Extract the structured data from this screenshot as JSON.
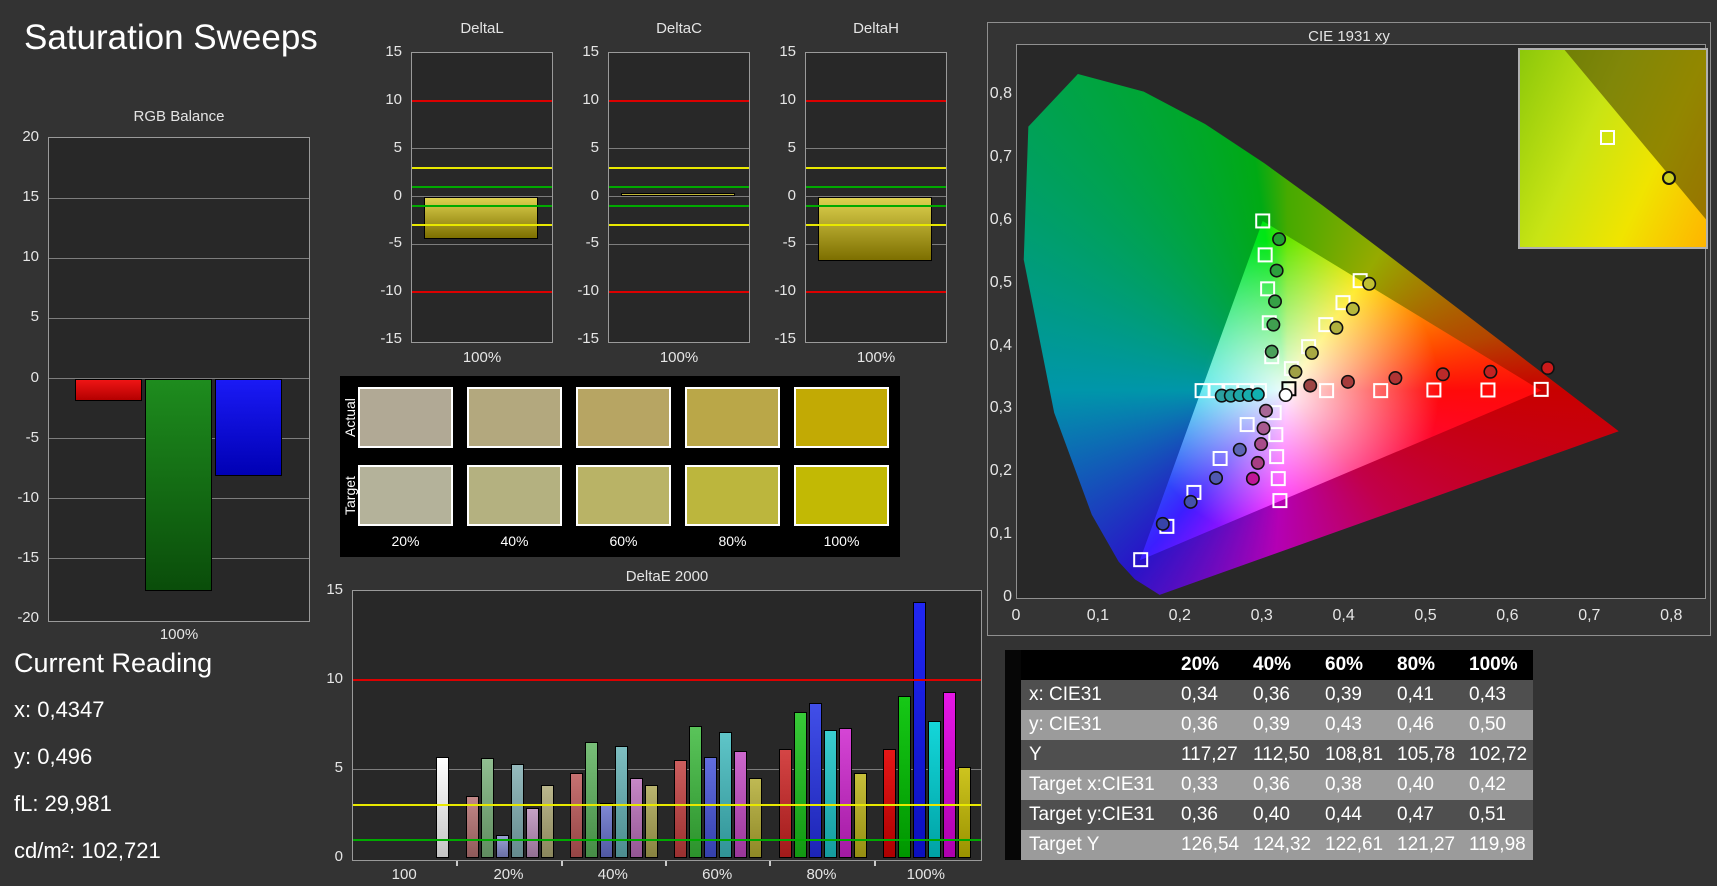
{
  "page": {
    "title": "Saturation Sweeps"
  },
  "current_reading": {
    "heading": "Current Reading",
    "lines": [
      "x: 0,4347",
      "y: 0,496",
      "fL: 29,981",
      "cd/m²: 102,721"
    ]
  },
  "swatch_panel": {
    "row_labels": [
      "Actual",
      "Target"
    ],
    "column_labels": [
      "20%",
      "40%",
      "60%",
      "80%",
      "100%"
    ],
    "actual_colors": [
      "#b1a995",
      "#b3a87e",
      "#b7a563",
      "#baa748",
      "#c2aa04"
    ],
    "target_colors": [
      "#b4b29a",
      "#b4b180",
      "#b9b366",
      "#bcb63d",
      "#c2b904"
    ]
  },
  "table": {
    "column_headers": [
      "20%",
      "40%",
      "60%",
      "80%",
      "100%"
    ],
    "rows": [
      {
        "label": "x: CIE31",
        "values": [
          "0,34",
          "0,36",
          "0,39",
          "0,41",
          "0,43"
        ]
      },
      {
        "label": "y: CIE31",
        "values": [
          "0,36",
          "0,39",
          "0,43",
          "0,46",
          "0,50"
        ]
      },
      {
        "label": "Y",
        "values": [
          "117,27",
          "112,50",
          "108,81",
          "105,78",
          "102,72"
        ]
      },
      {
        "label": "Target x:CIE31",
        "values": [
          "0,33",
          "0,36",
          "0,38",
          "0,40",
          "0,42"
        ]
      },
      {
        "label": "Target y:CIE31",
        "values": [
          "0,36",
          "0,40",
          "0,44",
          "0,47",
          "0,51"
        ]
      },
      {
        "label": "Target Y",
        "values": [
          "126,54",
          "124,32",
          "122,61",
          "121,27",
          "119,98"
        ]
      }
    ]
  },
  "chart_data": [
    {
      "id": "rgb_balance",
      "type": "bar",
      "title": "RGB Balance",
      "categories": [
        "100%"
      ],
      "ylim": [
        -20,
        20
      ],
      "yticks": [
        20,
        15,
        10,
        5,
        0,
        -5,
        -10,
        -15,
        -20
      ],
      "limit_lines": [],
      "series": [
        {
          "name": "red",
          "color": "#ee1515",
          "color2": "#b40000",
          "value": -1.9
        },
        {
          "name": "green",
          "color": "#1e8c1e",
          "color2": "#0a4d0a",
          "value": -17.7
        },
        {
          "name": "blue",
          "color": "#1a1af5",
          "color2": "#0000b4",
          "value": -8.1
        }
      ]
    },
    {
      "id": "delta_l",
      "type": "bar",
      "title": "DeltaL",
      "categories": [
        "100%"
      ],
      "ylim": [
        -15,
        15
      ],
      "yticks": [
        15,
        10,
        5,
        0,
        -5,
        -10,
        -15
      ],
      "limit_lines": [
        {
          "color": "#dc0000",
          "values": [
            10,
            -10
          ]
        },
        {
          "color": "#e8e800",
          "values": [
            3,
            -3
          ]
        },
        {
          "color": "#00aa00",
          "values": [
            1,
            -1
          ]
        }
      ],
      "series": [
        {
          "name": "deltaL",
          "color": "#ded24f",
          "color2": "#7d6f00",
          "value": -4.4
        }
      ]
    },
    {
      "id": "delta_c",
      "type": "bar",
      "title": "DeltaC",
      "categories": [
        "100%"
      ],
      "ylim": [
        -15,
        15
      ],
      "yticks": [
        15,
        10,
        5,
        0,
        -5,
        -10,
        -15
      ],
      "limit_lines": [
        {
          "color": "#dc0000",
          "values": [
            10,
            -10
          ]
        },
        {
          "color": "#e8e800",
          "values": [
            3,
            -3
          ]
        },
        {
          "color": "#00aa00",
          "values": [
            1,
            -1
          ]
        }
      ],
      "series": [
        {
          "name": "deltaC",
          "color": "#ded24f",
          "color2": "#a89b20",
          "value": 0.4
        }
      ]
    },
    {
      "id": "delta_h",
      "type": "bar",
      "title": "DeltaH",
      "categories": [
        "100%"
      ],
      "ylim": [
        -15,
        15
      ],
      "yticks": [
        15,
        10,
        5,
        0,
        -5,
        -10,
        -15
      ],
      "limit_lines": [
        {
          "color": "#dc0000",
          "values": [
            10,
            -10
          ]
        },
        {
          "color": "#e8e800",
          "values": [
            3,
            -3
          ]
        },
        {
          "color": "#00aa00",
          "values": [
            1,
            -1
          ]
        }
      ],
      "series": [
        {
          "name": "deltaH",
          "color": "#ded24f",
          "color2": "#7d6f00",
          "value": -6.7
        }
      ]
    },
    {
      "id": "delta_e_2000",
      "type": "bar",
      "title": "DeltaE 2000",
      "ylim": [
        0,
        15
      ],
      "yticks": [
        0,
        5,
        10,
        15
      ],
      "limit_lines": [
        {
          "color": "#dc0000",
          "values": [
            10
          ]
        },
        {
          "color": "#e8e800",
          "values": [
            3
          ]
        },
        {
          "color": "#00aa00",
          "values": [
            1
          ]
        }
      ],
      "groups": [
        {
          "label": "100",
          "bars": [
            {
              "name": "white",
              "color": "#ffffff",
              "color2": "#c4c4c4",
              "value": 5.7
            }
          ]
        },
        {
          "label": "20%",
          "bars": [
            {
              "name": "red",
              "color": "#c28888",
              "color2": "#8f5a5a",
              "value": 3.5
            },
            {
              "name": "green",
              "color": "#90bd90",
              "color2": "#5f8c5f",
              "value": 5.6
            },
            {
              "name": "blue",
              "color": "#9aa0d2",
              "color2": "#6a70a6",
              "value": 1.3
            },
            {
              "name": "cyan",
              "color": "#95babd",
              "color2": "#648a8d",
              "value": 5.3
            },
            {
              "name": "magenta",
              "color": "#c6a2c6",
              "color2": "#937093",
              "value": 2.8
            },
            {
              "name": "yellow",
              "color": "#bab68c",
              "color2": "#8a865c",
              "value": 4.1
            }
          ]
        },
        {
          "label": "40%",
          "bars": [
            {
              "name": "red",
              "color": "#c67272",
              "color2": "#944444",
              "value": 4.8
            },
            {
              "name": "green",
              "color": "#78be78",
              "color2": "#468c46",
              "value": 6.5
            },
            {
              "name": "blue",
              "color": "#8089d4",
              "color2": "#5058a2",
              "value": 3.1
            },
            {
              "name": "cyan",
              "color": "#7ebec1",
              "color2": "#4c8c8f",
              "value": 6.3
            },
            {
              "name": "magenta",
              "color": "#c688c6",
              "color2": "#945694",
              "value": 4.5
            },
            {
              "name": "yellow",
              "color": "#b9b46f",
              "color2": "#888340",
              "value": 4.1
            }
          ]
        },
        {
          "label": "60%",
          "bars": [
            {
              "name": "red",
              "color": "#cd5e5e",
              "color2": "#9a3030",
              "value": 5.5
            },
            {
              "name": "green",
              "color": "#5ac45a",
              "color2": "#2c922c",
              "value": 7.4
            },
            {
              "name": "blue",
              "color": "#626edf",
              "color2": "#3440ad",
              "value": 5.7
            },
            {
              "name": "cyan",
              "color": "#5fc5c8",
              "color2": "#309396",
              "value": 7.1
            },
            {
              "name": "magenta",
              "color": "#cd68cd",
              "color2": "#9a369a",
              "value": 6.0
            },
            {
              "name": "yellow",
              "color": "#bfb953",
              "color2": "#8e8826",
              "value": 4.5
            }
          ]
        },
        {
          "label": "80%",
          "bars": [
            {
              "name": "red",
              "color": "#d44545",
              "color2": "#a11a1a",
              "value": 6.1
            },
            {
              "name": "green",
              "color": "#38ca38",
              "color2": "#129812",
              "value": 8.2
            },
            {
              "name": "blue",
              "color": "#414fe8",
              "color2": "#1c24b6",
              "value": 8.7
            },
            {
              "name": "cyan",
              "color": "#3acdd0",
              "color2": "#149b9e",
              "value": 7.2
            },
            {
              "name": "magenta",
              "color": "#d545d5",
              "color2": "#a31aa3",
              "value": 7.3
            },
            {
              "name": "yellow",
              "color": "#c6bf3a",
              "color2": "#958e12",
              "value": 4.8
            }
          ]
        },
        {
          "label": "100%",
          "bars": [
            {
              "name": "red",
              "color": "#e61717",
              "color2": "#ad0000",
              "value": 6.1
            },
            {
              "name": "green",
              "color": "#16c816",
              "color2": "#009600",
              "value": 9.1
            },
            {
              "name": "blue",
              "color": "#2127f2",
              "color2": "#0b0fbe",
              "value": 14.4
            },
            {
              "name": "cyan",
              "color": "#14d6d9",
              "color2": "#00a2a5",
              "value": 7.7
            },
            {
              "name": "magenta",
              "color": "#e617e6",
              "color2": "#ad00ad",
              "value": 9.3
            },
            {
              "name": "yellow",
              "color": "#cdc41f",
              "color2": "#9a9200",
              "value": 5.1
            }
          ]
        }
      ]
    },
    {
      "id": "cie_1931_xy",
      "type": "scatter",
      "title": "CIE 1931 xy",
      "xlim": [
        0,
        0.84
      ],
      "ylim": [
        0,
        0.88
      ],
      "x_tick_labels": [
        "0",
        "0,1",
        "0,2",
        "0,3",
        "0,4",
        "0,5",
        "0,6",
        "0,7",
        "0,8"
      ],
      "y_tick_labels": [
        "0",
        "0,1",
        "0,2",
        "0,3",
        "0,4",
        "0,5",
        "0,6",
        "0,7",
        "0,8"
      ],
      "white_point": [
        0.33,
        0.33
      ],
      "gamut_triangle": [
        [
          0.64,
          0.33
        ],
        [
          0.3,
          0.6
        ],
        [
          0.15,
          0.06
        ]
      ],
      "spectral_locus": [
        [
          0.1741,
          0.005
        ],
        [
          0.144,
          0.0297
        ],
        [
          0.1241,
          0.0578
        ],
        [
          0.0913,
          0.1327
        ],
        [
          0.0454,
          0.295
        ],
        [
          0.0082,
          0.5384
        ],
        [
          0.0139,
          0.7502
        ],
        [
          0.0743,
          0.8338
        ],
        [
          0.1547,
          0.8059
        ],
        [
          0.2296,
          0.7543
        ],
        [
          0.3016,
          0.6923
        ],
        [
          0.3731,
          0.6245
        ],
        [
          0.4441,
          0.5547
        ],
        [
          0.5125,
          0.4866
        ],
        [
          0.5752,
          0.4242
        ],
        [
          0.627,
          0.3725
        ],
        [
          0.6658,
          0.334
        ],
        [
          0.6915,
          0.3083
        ],
        [
          0.7079,
          0.292
        ],
        [
          0.726,
          0.274
        ],
        [
          0.7347,
          0.2653
        ]
      ],
      "targets": [
        {
          "x": 0.378,
          "y": 0.33
        },
        {
          "x": 0.444,
          "y": 0.33
        },
        {
          "x": 0.509,
          "y": 0.331
        },
        {
          "x": 0.575,
          "y": 0.331
        },
        {
          "x": 0.64,
          "y": 0.332
        },
        {
          "x": 0.311,
          "y": 0.384
        },
        {
          "x": 0.308,
          "y": 0.438
        },
        {
          "x": 0.306,
          "y": 0.492
        },
        {
          "x": 0.303,
          "y": 0.546
        },
        {
          "x": 0.3,
          "y": 0.6
        },
        {
          "x": 0.281,
          "y": 0.276
        },
        {
          "x": 0.248,
          "y": 0.222
        },
        {
          "x": 0.216,
          "y": 0.168
        },
        {
          "x": 0.183,
          "y": 0.114
        },
        {
          "x": 0.151,
          "y": 0.061
        },
        {
          "x": 0.296,
          "y": 0.33
        },
        {
          "x": 0.278,
          "y": 0.33
        },
        {
          "x": 0.261,
          "y": 0.33
        },
        {
          "x": 0.243,
          "y": 0.33
        },
        {
          "x": 0.226,
          "y": 0.33
        },
        {
          "x": 0.314,
          "y": 0.295
        },
        {
          "x": 0.316,
          "y": 0.26
        },
        {
          "x": 0.317,
          "y": 0.225
        },
        {
          "x": 0.319,
          "y": 0.19
        },
        {
          "x": 0.321,
          "y": 0.155
        },
        {
          "x": 0.335,
          "y": 0.365
        },
        {
          "x": 0.356,
          "y": 0.4
        },
        {
          "x": 0.377,
          "y": 0.435
        },
        {
          "x": 0.398,
          "y": 0.47
        },
        {
          "x": 0.419,
          "y": 0.505
        },
        {
          "x": 0.332,
          "y": 0.333,
          "stroke": "#000000"
        }
      ],
      "measurements": [
        {
          "x": 0.358,
          "y": 0.338,
          "color": "#9c4444"
        },
        {
          "x": 0.404,
          "y": 0.344,
          "color": "#a63c3c"
        },
        {
          "x": 0.462,
          "y": 0.35,
          "color": "#b03434"
        },
        {
          "x": 0.52,
          "y": 0.356,
          "color": "#ba2a2a"
        },
        {
          "x": 0.578,
          "y": 0.36,
          "color": "#c22222"
        },
        {
          "x": 0.648,
          "y": 0.366,
          "color": "#cc1a1a"
        },
        {
          "x": 0.311,
          "y": 0.392,
          "color": "#4aa05a"
        },
        {
          "x": 0.313,
          "y": 0.435,
          "color": "#40a050"
        },
        {
          "x": 0.315,
          "y": 0.472,
          "color": "#36a046"
        },
        {
          "x": 0.317,
          "y": 0.521,
          "color": "#2ca03c"
        },
        {
          "x": 0.32,
          "y": 0.571,
          "color": "#22a032"
        },
        {
          "x": 0.272,
          "y": 0.236,
          "color": "#5c64b4"
        },
        {
          "x": 0.243,
          "y": 0.191,
          "color": "#5058b0"
        },
        {
          "x": 0.212,
          "y": 0.153,
          "color": "#4450ac"
        },
        {
          "x": 0.178,
          "y": 0.118,
          "color": "#3844a8"
        },
        {
          "x": 0.25,
          "y": 0.322,
          "color": "#2aa0a0"
        },
        {
          "x": 0.261,
          "y": 0.322,
          "color": "#24a4a4"
        },
        {
          "x": 0.272,
          "y": 0.323,
          "color": "#1ea8a8"
        },
        {
          "x": 0.283,
          "y": 0.323,
          "color": "#18acac"
        },
        {
          "x": 0.294,
          "y": 0.324,
          "color": "#12b0b0"
        },
        {
          "x": 0.304,
          "y": 0.298,
          "color": "#a86896"
        },
        {
          "x": 0.301,
          "y": 0.27,
          "color": "#a85a90"
        },
        {
          "x": 0.298,
          "y": 0.245,
          "color": "#a84c8a"
        },
        {
          "x": 0.294,
          "y": 0.215,
          "color": "#a83e84"
        },
        {
          "x": 0.288,
          "y": 0.19,
          "color": "#c01696"
        },
        {
          "x": 0.34,
          "y": 0.36,
          "color": "#a0a046"
        },
        {
          "x": 0.36,
          "y": 0.39,
          "color": "#a8a842"
        },
        {
          "x": 0.39,
          "y": 0.43,
          "color": "#b0b03e"
        },
        {
          "x": 0.41,
          "y": 0.46,
          "color": "#b8b83a"
        },
        {
          "x": 0.43,
          "y": 0.5,
          "color": "#c0c032"
        },
        {
          "x": 0.328,
          "y": 0.323,
          "color": "#ffffff"
        }
      ],
      "inset": {
        "square": [
          0.47,
          0.44
        ],
        "circle": [
          0.8,
          0.65
        ],
        "circle_color": "#cfd020"
      }
    }
  ]
}
